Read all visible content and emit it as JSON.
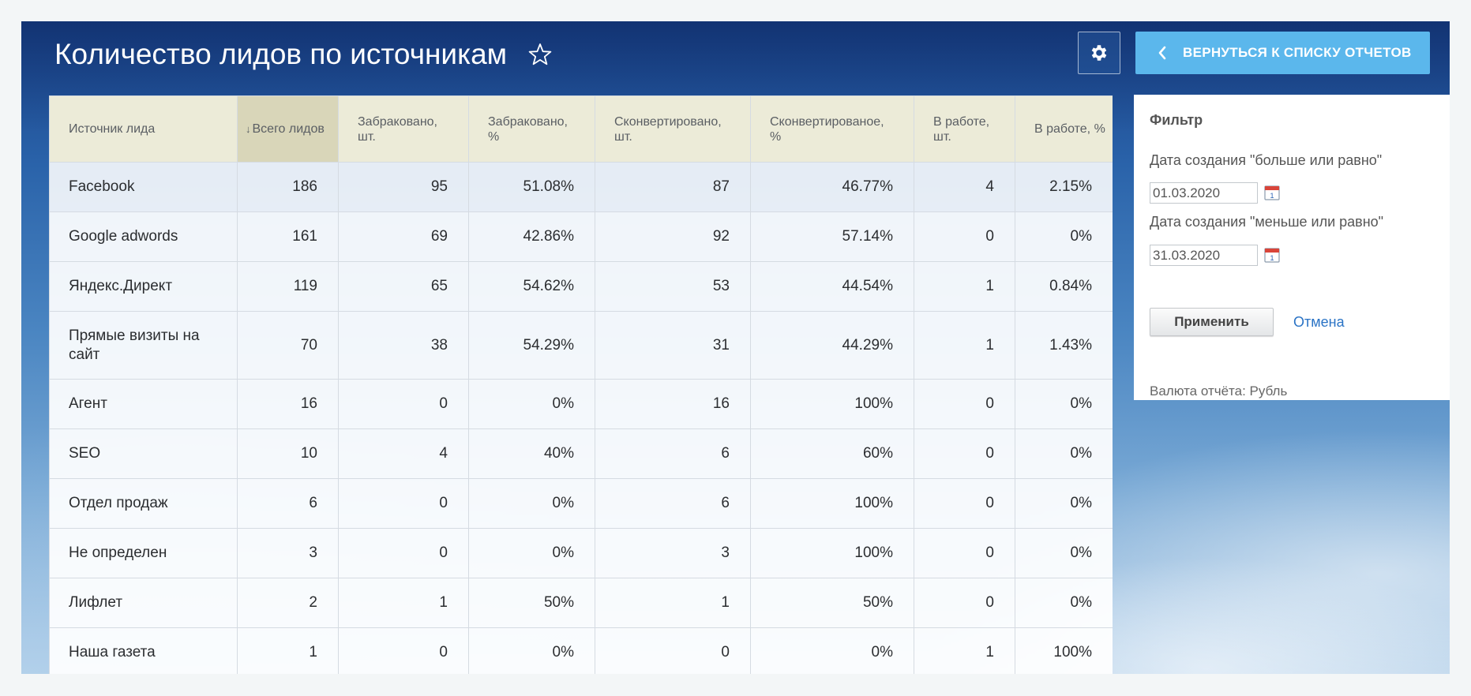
{
  "header": {
    "title": "Количество лидов по источникам",
    "back_label": "ВЕРНУТЬСЯ К СПИСКУ ОТЧЕТОВ"
  },
  "table": {
    "columns": [
      {
        "label": "Источник лида",
        "sorted": false
      },
      {
        "label": "Всего лидов",
        "sorted": true,
        "sort_indicator": "↓"
      },
      {
        "label": "Забраковано, шт.",
        "sorted": false
      },
      {
        "label": "Забраковано, %",
        "sorted": false
      },
      {
        "label": "Сконвертировано, шт.",
        "sorted": false
      },
      {
        "label": "Сконвертированое, %",
        "sorted": false
      },
      {
        "label": "В работе, шт.",
        "sorted": false
      },
      {
        "label": "В работе, %",
        "sorted": false
      }
    ],
    "rows": [
      [
        "Facebook",
        "186",
        "95",
        "51.08%",
        "87",
        "46.77%",
        "4",
        "2.15%"
      ],
      [
        "Google adwords",
        "161",
        "69",
        "42.86%",
        "92",
        "57.14%",
        "0",
        "0%"
      ],
      [
        "Яндекс.Директ",
        "119",
        "65",
        "54.62%",
        "53",
        "44.54%",
        "1",
        "0.84%"
      ],
      [
        "Прямые визиты на сайт",
        "70",
        "38",
        "54.29%",
        "31",
        "44.29%",
        "1",
        "1.43%"
      ],
      [
        "Агент",
        "16",
        "0",
        "0%",
        "16",
        "100%",
        "0",
        "0%"
      ],
      [
        "SEO",
        "10",
        "4",
        "40%",
        "6",
        "60%",
        "0",
        "0%"
      ],
      [
        "Отдел продаж",
        "6",
        "0",
        "0%",
        "6",
        "100%",
        "0",
        "0%"
      ],
      [
        "Не определен",
        "3",
        "0",
        "0%",
        "3",
        "100%",
        "0",
        "0%"
      ],
      [
        "Лифлет",
        "2",
        "1",
        "50%",
        "1",
        "50%",
        "0",
        "0%"
      ],
      [
        "Наша газета",
        "1",
        "0",
        "0%",
        "0",
        "0%",
        "1",
        "100%"
      ]
    ]
  },
  "filter": {
    "title": "Фильтр",
    "date_from_label": "Дата создания \"больше или равно\"",
    "date_from_value": "01.03.2020",
    "date_to_label": "Дата создания \"меньше или равно\"",
    "date_to_value": "31.03.2020",
    "apply_label": "Применить",
    "cancel_label": "Отмена",
    "currency_text": "Валюта отчёта: Рубль"
  },
  "icons": {
    "star": "star-outline-icon",
    "gear": "gear-icon",
    "back": "chevron-left-icon",
    "calendar": "calendar-icon"
  },
  "colors": {
    "back_button": "#5bb7ec",
    "table_header": "#ecebd8",
    "sorted_header": "#d9d6b9",
    "link": "#2a73c5"
  }
}
